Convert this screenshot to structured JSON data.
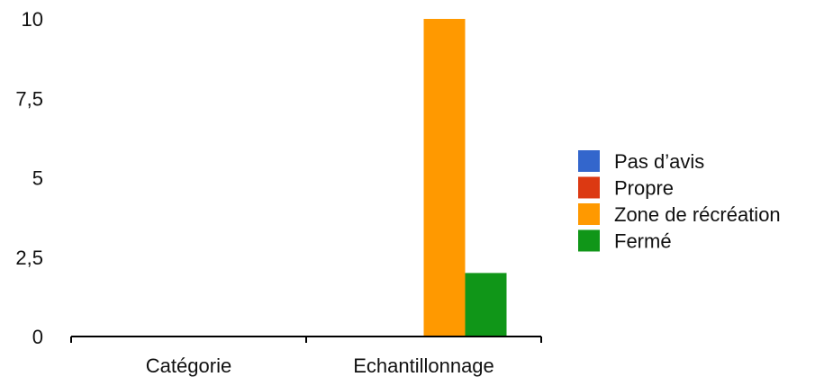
{
  "chart_data": {
    "type": "bar",
    "categories": [
      "Catégorie",
      "Echantillonnage"
    ],
    "series": [
      {
        "name": "Pas d’avis",
        "color": "#3366cc",
        "values": [
          0,
          0
        ]
      },
      {
        "name": "Propre",
        "color": "#dc3912",
        "values": [
          0,
          0
        ]
      },
      {
        "name": "Zone de récréation",
        "color": "#ff9900",
        "values": [
          0,
          10
        ]
      },
      {
        "name": "Fermé",
        "color": "#109618",
        "values": [
          0,
          2
        ]
      }
    ],
    "ylim": [
      0,
      10
    ],
    "yticks": [
      0,
      2.5,
      5,
      7.5,
      10
    ],
    "ytick_labels": [
      "0",
      "2,5",
      "5",
      "7,5",
      "10"
    ],
    "legend_position": "right",
    "grid": false
  }
}
